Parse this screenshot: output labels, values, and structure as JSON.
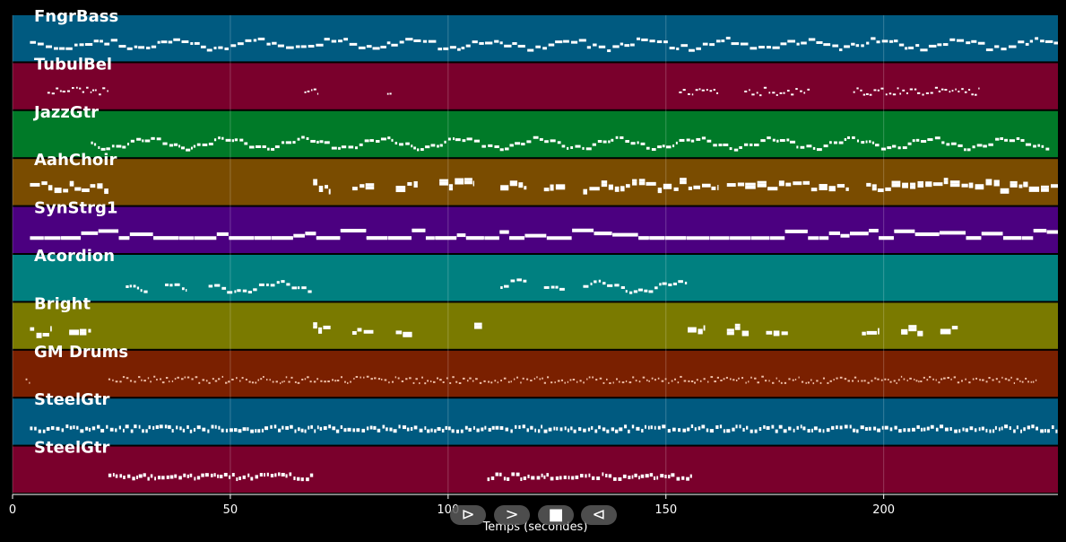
{
  "chart_data": {
    "type": "piano-roll",
    "xlabel": "Temps (secondes)",
    "xlim": [
      0,
      240
    ],
    "x_ticks": [
      0,
      50,
      100,
      150,
      200
    ],
    "grid": true,
    "tracks": [
      {
        "name": "FngrBass",
        "color": "#005a80",
        "segments": [
          [
            4,
            240
          ]
        ],
        "style": "bass",
        "pitch_lo": 36,
        "pitch_hi": 60
      },
      {
        "name": "TubulBel",
        "color": "#7a002c",
        "segments": [
          [
            8,
            22
          ],
          [
            67,
            70
          ],
          [
            86,
            87
          ],
          [
            153,
            162
          ],
          [
            168,
            183
          ],
          [
            193,
            222
          ]
        ],
        "style": "sparse",
        "pitch_lo": 60,
        "pitch_hi": 84
      },
      {
        "name": "JazzGtr",
        "color": "#007a28",
        "segments": [
          [
            18,
            238
          ]
        ],
        "style": "melody",
        "pitch_lo": 50,
        "pitch_hi": 80
      },
      {
        "name": "AahChoir",
        "color": "#7a4c00",
        "segments": [
          [
            4,
            22
          ],
          [
            69,
            73
          ],
          [
            78,
            83
          ],
          [
            88,
            93
          ],
          [
            98,
            106
          ],
          [
            112,
            118
          ],
          [
            122,
            127
          ],
          [
            131,
            162
          ],
          [
            164,
            192
          ],
          [
            196,
            240
          ]
        ],
        "style": "chords",
        "pitch_lo": 48,
        "pitch_hi": 76
      },
      {
        "name": "SynStrg1",
        "color": "#4b0080",
        "segments": [
          [
            4,
            240
          ]
        ],
        "style": "strings",
        "pitch_lo": 40,
        "pitch_hi": 80
      },
      {
        "name": "Acordion",
        "color": "#008080",
        "segments": [
          [
            26,
            31
          ],
          [
            35,
            40
          ],
          [
            45,
            69
          ],
          [
            112,
            118
          ],
          [
            122,
            127
          ],
          [
            131,
            155
          ]
        ],
        "style": "melody",
        "pitch_lo": 55,
        "pitch_hi": 80
      },
      {
        "name": "Bright",
        "color": "#7a7a00",
        "segments": [
          [
            4,
            9
          ],
          [
            13,
            18
          ],
          [
            69,
            73
          ],
          [
            78,
            83
          ],
          [
            88,
            92
          ],
          [
            106,
            108
          ],
          [
            155,
            159
          ],
          [
            164,
            169
          ],
          [
            173,
            178
          ],
          [
            195,
            199
          ],
          [
            204,
            209
          ],
          [
            213,
            217
          ]
        ],
        "style": "chords",
        "pitch_lo": 48,
        "pitch_hi": 76
      },
      {
        "name": "GM Drums",
        "color": "#7a2000",
        "segments": [
          [
            3,
            4
          ],
          [
            22,
            235
          ]
        ],
        "style": "drums",
        "pitch_lo": 35,
        "pitch_hi": 60
      },
      {
        "name": "SteelGtr",
        "color": "#005a80",
        "segments": [
          [
            4,
            240
          ]
        ],
        "style": "dense",
        "pitch_lo": 40,
        "pitch_hi": 70
      },
      {
        "name": "SteelGtr",
        "color": "#7a002c",
        "segments": [
          [
            22,
            69
          ],
          [
            109,
            156
          ]
        ],
        "style": "dense",
        "pitch_lo": 45,
        "pitch_hi": 70
      }
    ]
  },
  "controls": {
    "play_label": "⊳",
    "forward_label": ">",
    "stop_label": "■",
    "back_label": "⊲"
  }
}
